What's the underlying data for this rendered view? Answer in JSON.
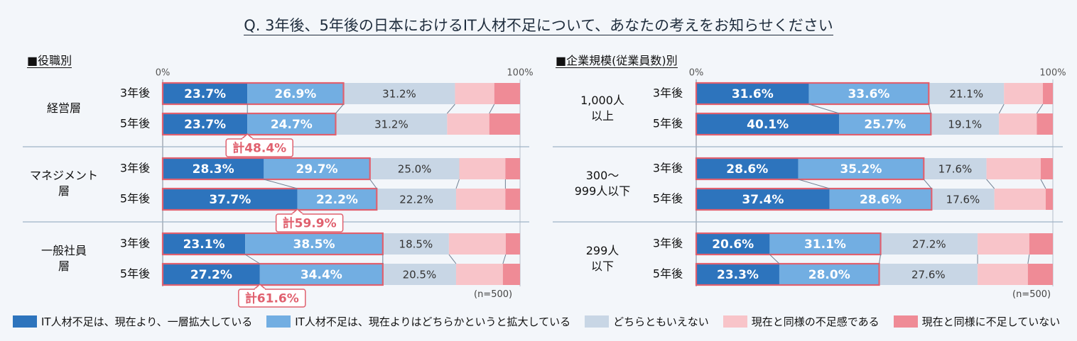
{
  "title": "Q. 3年後、5年後の日本におけるIT人材不足について、あなたの考えをお知らせください",
  "sections": [
    {
      "title": "■役職別",
      "n_note": "(n=500)"
    },
    {
      "title": "■企業規模(従業員数)別",
      "n_note": "(n=500)"
    }
  ],
  "colors": [
    "#2d74bd",
    "#72aee2",
    "#c8d6e5",
    "#f8c4c9",
    "#ef8b96"
  ],
  "highlight_color": "#e0606e",
  "legend": [
    "IT人材不足は、現在より、一層拡大している",
    "IT人材不足は、現在よりはどちらかというと拡大している",
    "どちらともいえない",
    "現在と同様の不足感である",
    "現在と同様に不足していない"
  ],
  "chart_data": [
    {
      "type": "bar",
      "orientation": "horizontal",
      "stacked": true,
      "percent_stacked": true,
      "title": "■役職別",
      "axis_labels": [
        "0%",
        "100%"
      ],
      "xlim": [
        0,
        100
      ],
      "n_note": "(n=500)",
      "series_names": [
        "IT人材不足は、現在より、一層拡大している",
        "IT人材不足は、現在よりはどちらかというと拡大している",
        "どちらともいえない",
        "現在と同様の不足感である",
        "現在と同様に不足していない"
      ],
      "groups": [
        {
          "label": "経営層",
          "total_label": "計48.4%",
          "rows": [
            {
              "label": "3年後",
              "values": [
                23.7,
                26.9,
                31.2,
                11.0,
                7.2
              ],
              "labels": [
                "23.7%",
                "26.9%",
                "31.2%",
                "",
                ""
              ]
            },
            {
              "label": "5年後",
              "values": [
                23.7,
                24.7,
                31.2,
                11.8,
                8.6
              ],
              "labels": [
                "23.7%",
                "24.7%",
                "31.2%",
                "",
                ""
              ]
            }
          ]
        },
        {
          "label": "マネジメント\n層",
          "total_label": "計59.9%",
          "rows": [
            {
              "label": "3年後",
              "values": [
                28.3,
                29.7,
                25.0,
                12.9,
                4.1
              ],
              "labels": [
                "28.3%",
                "29.7%",
                "25.0%",
                "",
                ""
              ]
            },
            {
              "label": "5年後",
              "values": [
                37.7,
                22.2,
                22.2,
                13.8,
                4.1
              ],
              "labels": [
                "37.7%",
                "22.2%",
                "22.2%",
                "",
                ""
              ]
            }
          ]
        },
        {
          "label": "一般社員\n層",
          "total_label": "計61.6%",
          "rows": [
            {
              "label": "3年後",
              "values": [
                23.1,
                38.5,
                18.5,
                15.9,
                4.0
              ],
              "labels": [
                "23.1%",
                "38.5%",
                "18.5%",
                "",
                ""
              ]
            },
            {
              "label": "5年後",
              "values": [
                27.2,
                34.4,
                20.5,
                13.1,
                4.8
              ],
              "labels": [
                "27.2%",
                "34.4%",
                "20.5%",
                "",
                ""
              ]
            }
          ]
        }
      ]
    },
    {
      "type": "bar",
      "orientation": "horizontal",
      "stacked": true,
      "percent_stacked": true,
      "title": "■企業規模(従業員数)別",
      "axis_labels": [
        "0%",
        "100%"
      ],
      "xlim": [
        0,
        100
      ],
      "n_note": "(n=500)",
      "series_names": [
        "IT人材不足は、現在より、一層拡大している",
        "IT人材不足は、現在よりはどちらかというと拡大している",
        "どちらともいえない",
        "現在と同様の不足感である",
        "現在と同様に不足していない"
      ],
      "groups": [
        {
          "label": "1,000人\n以上",
          "rows": [
            {
              "label": "3年後",
              "values": [
                31.6,
                33.6,
                21.1,
                10.9,
                2.8
              ],
              "labels": [
                "31.6%",
                "33.6%",
                "21.1%",
                "",
                ""
              ]
            },
            {
              "label": "5年後",
              "values": [
                40.1,
                25.7,
                19.1,
                10.6,
                4.5
              ],
              "labels": [
                "40.1%",
                "25.7%",
                "19.1%",
                "",
                ""
              ]
            }
          ]
        },
        {
          "label": "300～\n999人以下",
          "rows": [
            {
              "label": "3年後",
              "values": [
                28.6,
                35.2,
                17.6,
                15.2,
                3.4
              ],
              "labels": [
                "28.6%",
                "35.2%",
                "17.6%",
                "",
                ""
              ]
            },
            {
              "label": "5年後",
              "values": [
                37.4,
                28.6,
                17.6,
                14.4,
                2.0
              ],
              "labels": [
                "37.4%",
                "28.6%",
                "17.6%",
                "",
                ""
              ]
            }
          ]
        },
        {
          "label": "299人\n以下",
          "rows": [
            {
              "label": "3年後",
              "values": [
                20.6,
                31.1,
                27.2,
                14.5,
                6.6
              ],
              "labels": [
                "20.6%",
                "31.1%",
                "27.2%",
                "",
                ""
              ]
            },
            {
              "label": "5年後",
              "values": [
                23.3,
                28.0,
                27.6,
                14.1,
                7.0
              ],
              "labels": [
                "23.3%",
                "28.0%",
                "27.6%",
                "",
                ""
              ]
            }
          ]
        }
      ]
    }
  ]
}
